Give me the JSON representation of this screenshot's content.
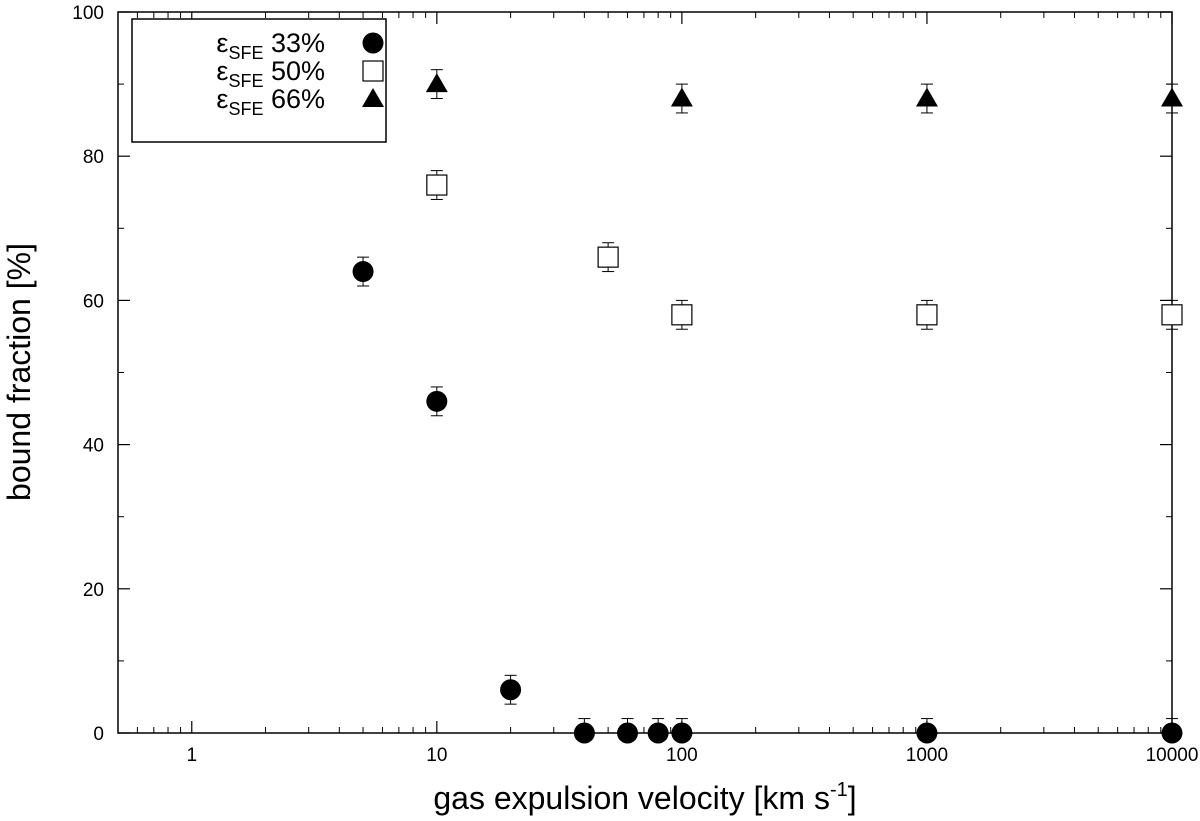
{
  "chart_data": {
    "type": "scatter",
    "xlabel": "gas expulsion velocity [km s",
    "xlabel_superscript": "-1",
    "xlabel_suffix": "]",
    "ylabel": "bound fraction [%]",
    "x_scale": "log",
    "xlim": [
      0.5,
      10000
    ],
    "ylim": [
      0,
      100
    ],
    "x_ticks": [
      1,
      10,
      100,
      1000,
      10000
    ],
    "x_tick_labels": [
      "1",
      "10",
      "100",
      "1000",
      "10000"
    ],
    "y_ticks": [
      0,
      20,
      40,
      60,
      80,
      100
    ],
    "y_tick_labels": [
      "0",
      "20",
      "40",
      "60",
      "80",
      "100"
    ],
    "grid": false,
    "legend_position": "top-left",
    "error_bar": 2,
    "series": [
      {
        "name": "33%",
        "legend_symbol": "ε",
        "legend_subscript": "SFE",
        "marker": "filled-circle",
        "x": [
          5,
          10,
          20,
          40,
          60,
          80,
          100,
          1000,
          10000
        ],
        "y": [
          64,
          46,
          6,
          0,
          0,
          0,
          0,
          0,
          0
        ]
      },
      {
        "name": "50%",
        "legend_symbol": "ε",
        "legend_subscript": "SFE",
        "marker": "open-square",
        "x": [
          10,
          50,
          100,
          1000,
          10000
        ],
        "y": [
          76,
          66,
          58,
          58,
          58
        ]
      },
      {
        "name": "66%",
        "legend_symbol": "ε",
        "legend_subscript": "SFE",
        "marker": "filled-triangle",
        "x": [
          10,
          100,
          1000,
          10000
        ],
        "y": [
          90,
          88,
          88,
          88
        ]
      }
    ]
  }
}
